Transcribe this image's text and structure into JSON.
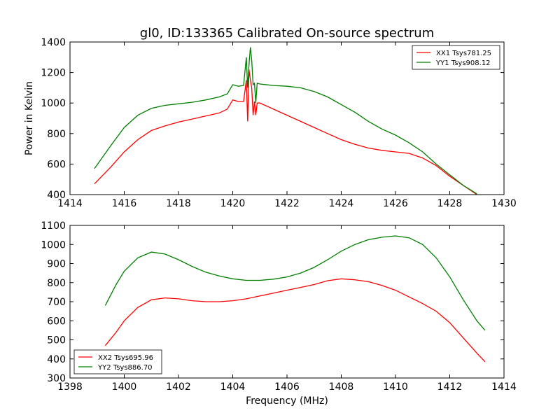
{
  "figure": {
    "title": "gl0, ID:133365 Calibrated On-source spectrum",
    "ylabel": "Power in Kelvin",
    "xlabel": "Frequency (MHz)"
  },
  "colors": {
    "red": "#ff0000",
    "green": "#007f00"
  },
  "chart_data": [
    {
      "type": "line",
      "xlim": [
        1414,
        1430
      ],
      "ylim": [
        400,
        1400
      ],
      "xticks": [
        1414,
        1416,
        1418,
        1420,
        1422,
        1424,
        1426,
        1428,
        1430
      ],
      "yticks": [
        400,
        600,
        800,
        1000,
        1200,
        1400
      ],
      "grid": false,
      "legend_position": "top-right",
      "series": [
        {
          "name": "XX1 Tsys781.25",
          "color": "#ff0000",
          "x": [
            1414.9,
            1415.5,
            1416.0,
            1416.5,
            1417.0,
            1417.5,
            1418.0,
            1418.5,
            1419.0,
            1419.5,
            1419.8,
            1420.0,
            1420.2,
            1420.4,
            1420.5,
            1420.55,
            1420.6,
            1420.65,
            1420.7,
            1420.75,
            1420.8,
            1420.85,
            1420.9,
            1421.0,
            1421.5,
            1422.0,
            1422.5,
            1423.0,
            1423.5,
            1424.0,
            1424.5,
            1425.0,
            1425.5,
            1426.0,
            1426.5,
            1427.0,
            1427.5,
            1428.0,
            1428.5,
            1429.0
          ],
          "y": [
            470,
            580,
            680,
            760,
            820,
            850,
            875,
            895,
            915,
            935,
            960,
            1020,
            1010,
            1010,
            1150,
            880,
            1220,
            1150,
            1100,
            920,
            1010,
            920,
            1000,
            1000,
            960,
            920,
            880,
            840,
            800,
            760,
            730,
            705,
            690,
            680,
            670,
            640,
            590,
            520,
            460,
            400
          ]
        },
        {
          "name": "YY1 Tsys908.12",
          "color": "#007f00",
          "x": [
            1414.9,
            1415.5,
            1416.0,
            1416.5,
            1417.0,
            1417.5,
            1418.0,
            1418.5,
            1419.0,
            1419.5,
            1419.8,
            1420.0,
            1420.2,
            1420.4,
            1420.5,
            1420.55,
            1420.6,
            1420.65,
            1420.7,
            1420.75,
            1420.8,
            1420.85,
            1420.9,
            1421.0,
            1421.5,
            1422.0,
            1422.5,
            1423.0,
            1423.5,
            1424.0,
            1424.5,
            1425.0,
            1425.5,
            1426.0,
            1426.5,
            1427.0,
            1427.5,
            1428.0,
            1428.5,
            1429.0
          ],
          "y": [
            570,
            720,
            840,
            920,
            965,
            985,
            995,
            1005,
            1020,
            1040,
            1060,
            1120,
            1110,
            1115,
            1300,
            1100,
            1250,
            1365,
            1280,
            1120,
            1130,
            1000,
            1130,
            1125,
            1115,
            1110,
            1100,
            1075,
            1040,
            990,
            940,
            880,
            830,
            790,
            740,
            680,
            600,
            530,
            460,
            405
          ]
        }
      ]
    },
    {
      "type": "line",
      "xlim": [
        1398,
        1414
      ],
      "ylim": [
        300,
        1100
      ],
      "xticks": [
        1398,
        1400,
        1402,
        1404,
        1406,
        1408,
        1410,
        1412,
        1414
      ],
      "yticks": [
        300,
        400,
        500,
        600,
        700,
        800,
        900,
        1000,
        1100
      ],
      "grid": false,
      "legend_position": "bottom-left",
      "series": [
        {
          "name": "XX2 Tsys695.96",
          "color": "#ff0000",
          "x": [
            1399.3,
            1399.7,
            1400.0,
            1400.5,
            1401.0,
            1401.5,
            1402.0,
            1402.5,
            1403.0,
            1403.5,
            1404.0,
            1404.5,
            1405.0,
            1405.5,
            1406.0,
            1406.5,
            1407.0,
            1407.5,
            1408.0,
            1408.5,
            1409.0,
            1409.5,
            1410.0,
            1410.5,
            1411.0,
            1411.5,
            1412.0,
            1412.5,
            1413.0,
            1413.3
          ],
          "y": [
            470,
            540,
            600,
            670,
            710,
            720,
            715,
            705,
            700,
            700,
            705,
            715,
            730,
            745,
            760,
            775,
            790,
            810,
            820,
            815,
            805,
            785,
            760,
            725,
            690,
            650,
            590,
            510,
            430,
            385
          ]
        },
        {
          "name": "YY2 Tsys886.70",
          "color": "#007f00",
          "x": [
            1399.3,
            1399.7,
            1400.0,
            1400.5,
            1401.0,
            1401.5,
            1402.0,
            1402.5,
            1403.0,
            1403.5,
            1404.0,
            1404.5,
            1405.0,
            1405.5,
            1406.0,
            1406.5,
            1407.0,
            1407.5,
            1408.0,
            1408.5,
            1409.0,
            1409.5,
            1410.0,
            1410.5,
            1411.0,
            1411.5,
            1412.0,
            1412.5,
            1413.0,
            1413.3
          ],
          "y": [
            680,
            790,
            860,
            930,
            960,
            950,
            920,
            885,
            855,
            835,
            820,
            812,
            812,
            818,
            830,
            850,
            880,
            920,
            965,
            1000,
            1025,
            1038,
            1045,
            1035,
            1000,
            930,
            830,
            710,
            600,
            550
          ]
        }
      ]
    }
  ]
}
